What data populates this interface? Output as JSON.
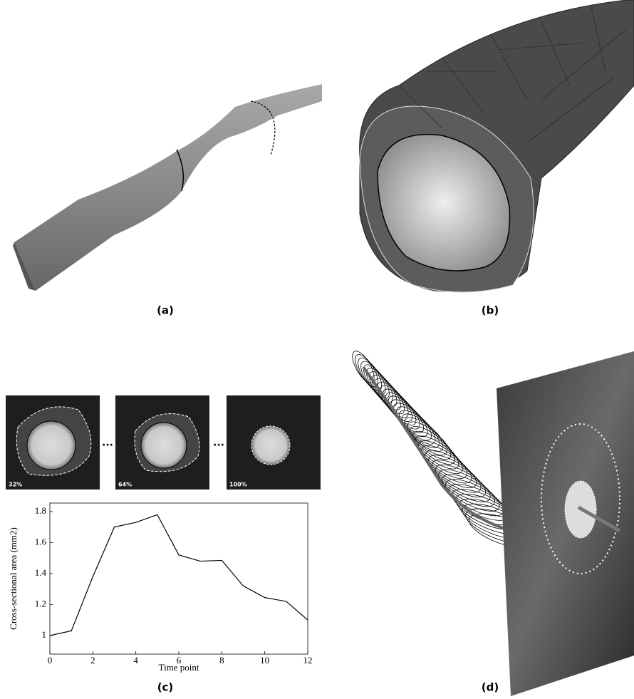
{
  "panels": [
    {
      "label": "(a)"
    },
    {
      "label": "(b)"
    },
    {
      "label": "(c)"
    },
    {
      "label": "(d)"
    }
  ],
  "thumbnails": [
    {
      "label": "32%"
    },
    {
      "label": "64%"
    },
    {
      "label": "100%"
    }
  ],
  "chart_data": {
    "type": "line",
    "xlabel": "Time point",
    "ylabel": "Cross-sectional area (mm2)",
    "x": [
      0,
      1,
      2,
      3,
      4,
      5,
      6,
      7,
      8,
      9,
      10,
      11,
      12
    ],
    "values": [
      1.0,
      1.03,
      1.38,
      1.7,
      1.73,
      1.78,
      1.52,
      1.48,
      1.485,
      1.32,
      1.245,
      1.22,
      1.1
    ],
    "color": "#000000",
    "xlim": [
      0,
      12
    ],
    "ylim": [
      0.88,
      1.855
    ],
    "xticks": [
      0,
      2,
      4,
      6,
      8,
      10,
      12
    ],
    "yticks": [
      1,
      1.2,
      1.4,
      1.6,
      1.8
    ]
  }
}
